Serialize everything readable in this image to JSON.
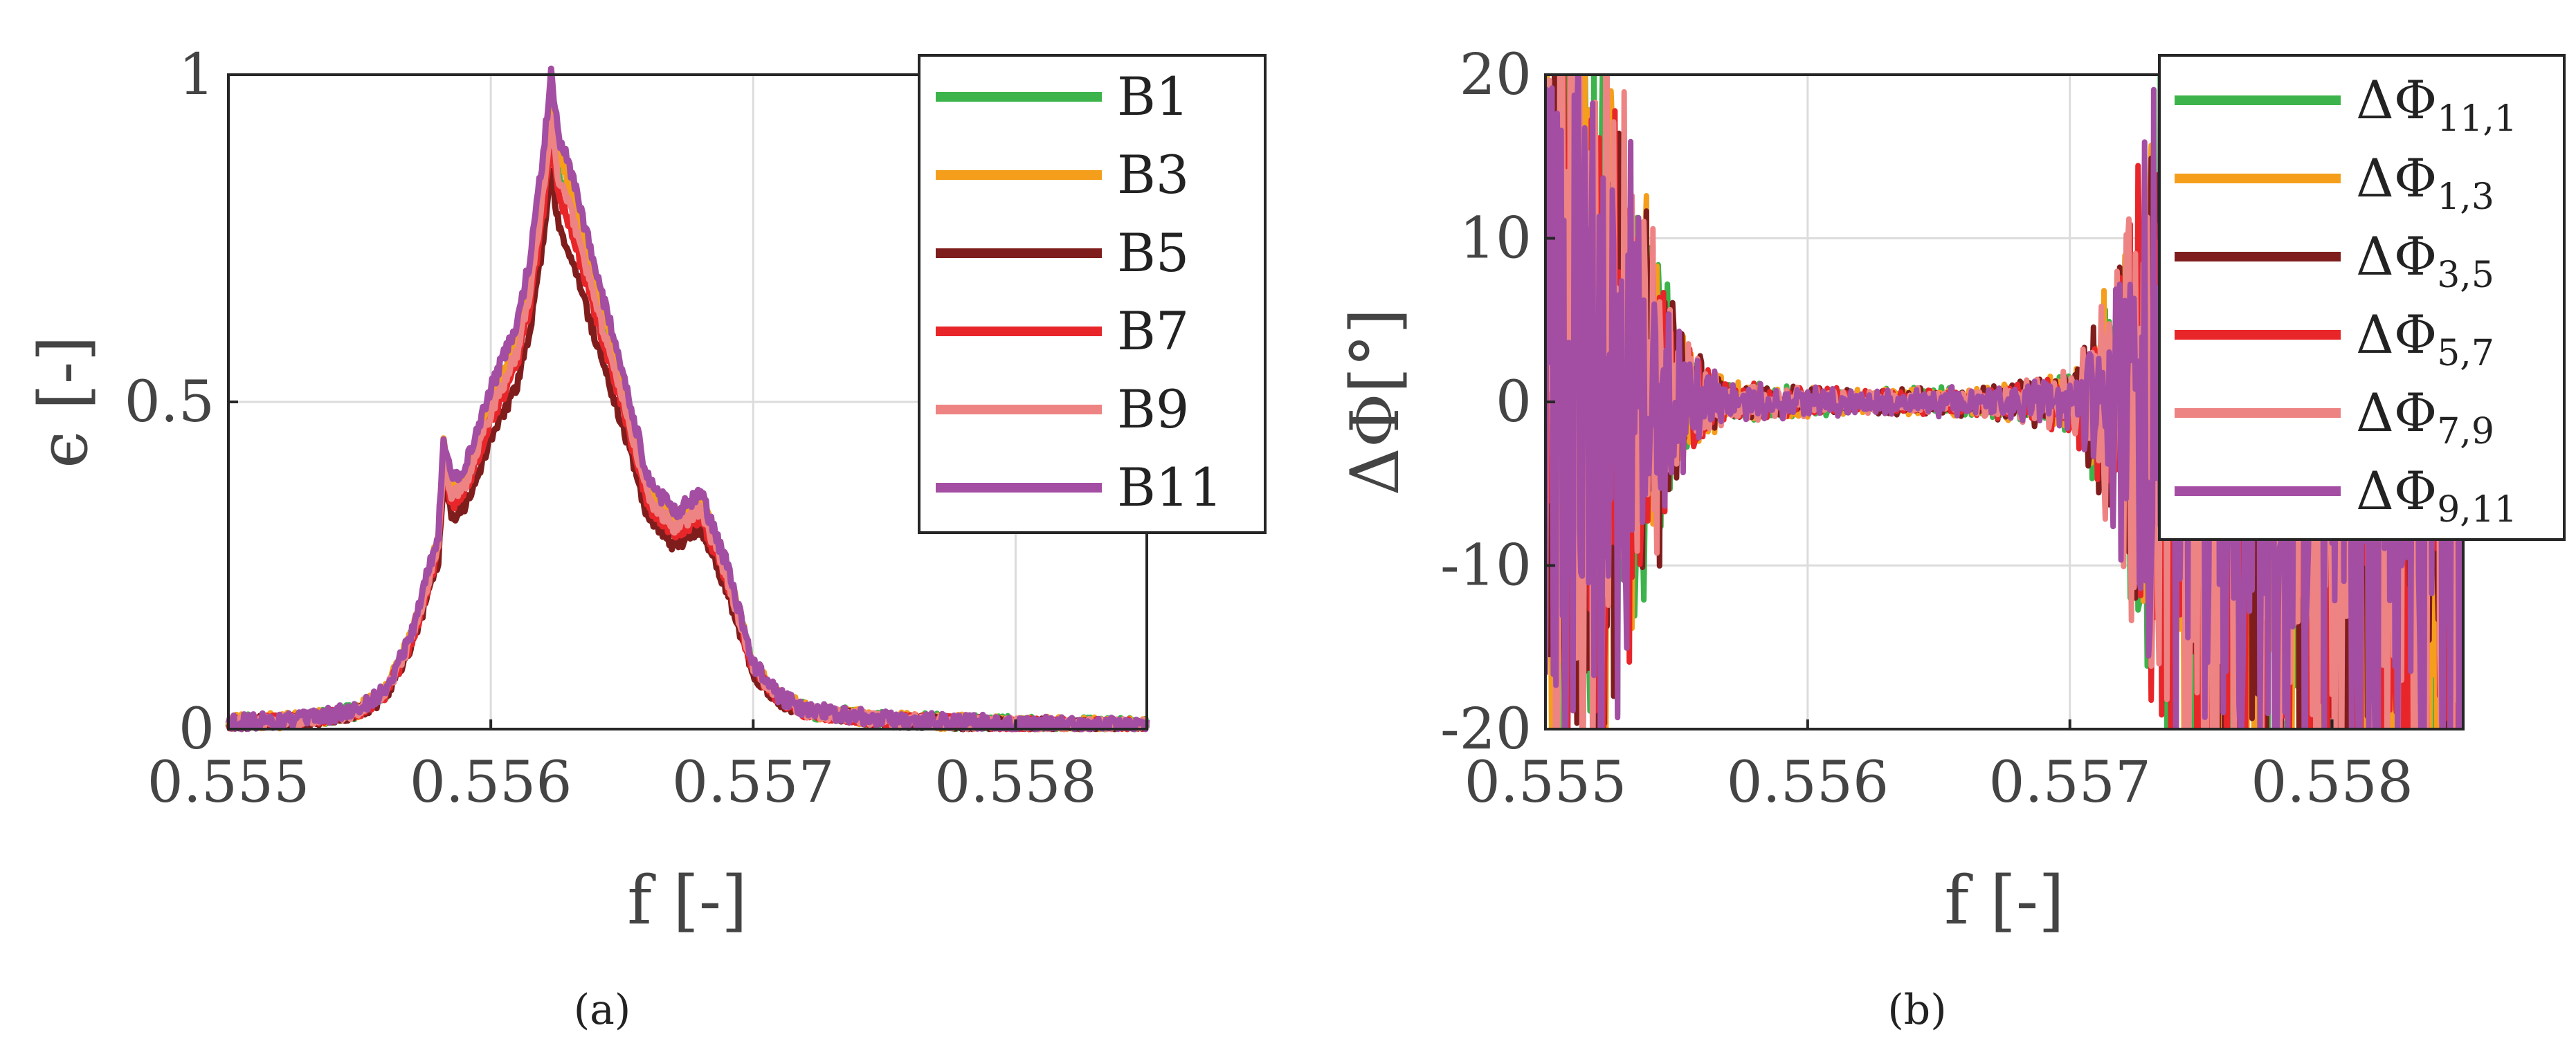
{
  "chart_data": [
    {
      "type": "line",
      "panel_label": "(a)",
      "xlabel": "f  [-]",
      "ylabel": "ϵ [-]",
      "xlim": [
        0.555,
        0.5585
      ],
      "ylim": [
        0,
        1
      ],
      "xticks": [
        "0.555",
        "0.556",
        "0.557",
        "0.558"
      ],
      "yticks": [
        "0",
        "0.5",
        "1"
      ],
      "grid": true,
      "legend_position": "top-right",
      "series": [
        {
          "name": "B1",
          "color": "#3cb44b",
          "scale": 0.94,
          "noise": 0.012
        },
        {
          "name": "B3",
          "color": "#f59e1c",
          "scale": 0.97,
          "noise": 0.012
        },
        {
          "name": "B5",
          "color": "#7f1d1d",
          "scale": 0.85,
          "noise": 0.01
        },
        {
          "name": "B7",
          "color": "#e8262a",
          "scale": 0.9,
          "noise": 0.01
        },
        {
          "name": "B9",
          "color": "#ee8383",
          "scale": 0.93,
          "noise": 0.01
        },
        {
          "name": "B11",
          "color": "#a34ea3",
          "scale": 1.0,
          "noise": 0.012
        }
      ],
      "profile": {
        "x": [
          0.555,
          0.5553,
          0.5555,
          0.5556,
          0.5557,
          0.5558,
          0.55582,
          0.55585,
          0.5559,
          0.556,
          0.5561,
          0.55615,
          0.5562,
          0.55623,
          0.55626,
          0.5563,
          0.5564,
          0.5565,
          0.5566,
          0.5567,
          0.5568,
          0.5569,
          0.557,
          0.5571,
          0.5572,
          0.5575,
          0.558,
          0.5585
        ],
        "y": [
          0.01,
          0.015,
          0.03,
          0.06,
          0.15,
          0.3,
          0.45,
          0.38,
          0.4,
          0.52,
          0.62,
          0.72,
          0.88,
          1.0,
          0.9,
          0.86,
          0.7,
          0.55,
          0.38,
          0.33,
          0.36,
          0.25,
          0.1,
          0.05,
          0.03,
          0.015,
          0.008,
          0.005
        ]
      }
    },
    {
      "type": "line",
      "panel_label": "(b)",
      "xlabel": "f  [-]",
      "ylabel": "ΔΦ[°]",
      "xlim": [
        0.555,
        0.5585
      ],
      "ylim": [
        -20,
        20
      ],
      "xticks": [
        "0.555",
        "0.556",
        "0.557",
        "0.558"
      ],
      "yticks": [
        "20",
        "10",
        "0",
        "-10",
        "-20"
      ],
      "grid": true,
      "legend_position": "top-right",
      "series": [
        {
          "name": "ΔΦ",
          "sub": "11,1",
          "color": "#3cb44b",
          "seed": 11
        },
        {
          "name": "ΔΦ",
          "sub": "1,3",
          "color": "#f59e1c",
          "seed": 23
        },
        {
          "name": "ΔΦ",
          "sub": "3,5",
          "color": "#7f1d1d",
          "seed": 37
        },
        {
          "name": "ΔΦ",
          "sub": "5,7",
          "color": "#e8262a",
          "seed": 41
        },
        {
          "name": "ΔΦ",
          "sub": "7,9",
          "color": "#ee8383",
          "seed": 53
        },
        {
          "name": "ΔΦ",
          "sub": "9,11",
          "color": "#a34ea3",
          "seed": 67
        }
      ],
      "envelope": {
        "x": [
          0.555,
          0.5552,
          0.5554,
          0.5555,
          0.5556,
          0.5557,
          0.5562,
          0.5567,
          0.557,
          0.5571,
          0.5572,
          0.5574,
          0.5576,
          0.5585
        ],
        "amp": [
          22,
          20,
          10,
          4,
          2,
          1,
          0.6,
          0.8,
          1.5,
          4,
          9,
          20,
          25,
          25
        ]
      }
    }
  ]
}
